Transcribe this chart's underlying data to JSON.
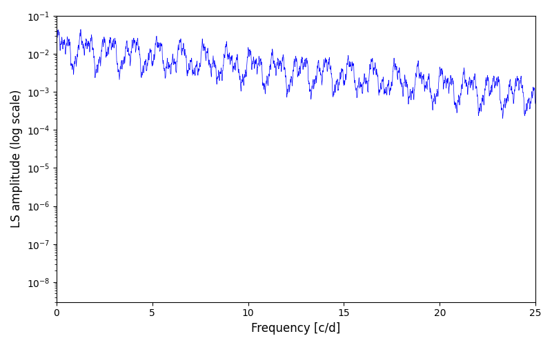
{
  "xlabel": "Frequency [c/d]",
  "ylabel": "LS amplitude (log scale)",
  "xlim": [
    0,
    25
  ],
  "ylim": [
    3e-09,
    0.1
  ],
  "line_color": "blue",
  "background_color": "#ffffff",
  "figsize": [
    8.0,
    5.0
  ],
  "dpi": 100,
  "n_points": 3000,
  "freq_max": 25.0,
  "seed": 42
}
